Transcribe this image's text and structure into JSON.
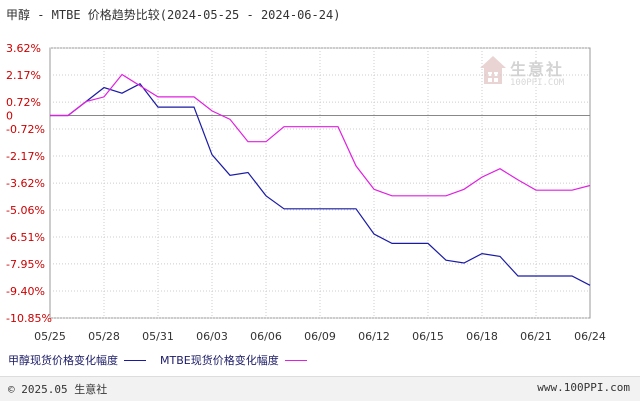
{
  "title": "甲醇 - MTBE 价格趋势比较(2024-05-25 - 2024-06-24)",
  "watermark": {
    "name": "生意社",
    "url": "100PPI.COM"
  },
  "footer": {
    "left": "© 2025.05 生意社",
    "right": "www.100PPI.com"
  },
  "colors": {
    "series1": "#1a1aa6",
    "series2": "#e020e0",
    "axis": "#999999",
    "zero_line": "#888888"
  },
  "chart_data": {
    "type": "line",
    "title": "甲醇 - MTBE 价格趋势比较(2024-05-25 - 2024-06-24)",
    "xlabel": "",
    "ylabel": "",
    "x": [
      "05/25",
      "05/26",
      "05/27",
      "05/28",
      "05/29",
      "05/30",
      "05/31",
      "06/01",
      "06/02",
      "06/03",
      "06/04",
      "06/05",
      "06/06",
      "06/07",
      "06/08",
      "06/09",
      "06/10",
      "06/11",
      "06/12",
      "06/13",
      "06/14",
      "06/15",
      "06/16",
      "06/17",
      "06/18",
      "06/19",
      "06/20",
      "06/21",
      "06/22",
      "06/23",
      "06/24"
    ],
    "x_ticks": [
      "05/25",
      "05/28",
      "05/31",
      "06/03",
      "06/06",
      "06/09",
      "06/12",
      "06/15",
      "06/18",
      "06/21",
      "06/24"
    ],
    "y_ticks": [
      "3.62%",
      "2.17%",
      "0.72%",
      "0",
      "-0.72%",
      "-2.17%",
      "-3.62%",
      "-5.06%",
      "-6.51%",
      "-7.95%",
      "-9.40%",
      "-10.85%"
    ],
    "y_tick_values": [
      3.62,
      2.17,
      0.72,
      0,
      -0.72,
      -2.17,
      -3.62,
      -5.06,
      -6.51,
      -7.95,
      -9.4,
      -10.85
    ],
    "ylim": [
      -10.85,
      3.62
    ],
    "grid": true,
    "series": [
      {
        "name": "甲醇现货价格变化幅度",
        "color": "#1a1aa6",
        "values": [
          0,
          0,
          0.75,
          1.5,
          1.2,
          1.7,
          0.45,
          0.45,
          0.45,
          -2.1,
          -3.2,
          -3.05,
          -4.3,
          -5.0,
          -5.0,
          -5.0,
          -5.0,
          -5.0,
          -6.35,
          -6.85,
          -6.85,
          -6.85,
          -7.75,
          -7.9,
          -7.4,
          -7.55,
          -8.6,
          -8.6,
          -8.6,
          -8.6,
          -9.1
        ]
      },
      {
        "name": "MTBE现货价格变化幅度",
        "color": "#e020e0",
        "values": [
          0,
          0,
          0.75,
          1.0,
          2.2,
          1.6,
          1.0,
          1.0,
          1.0,
          0.25,
          -0.2,
          -1.4,
          -1.4,
          -0.6,
          -0.6,
          -0.6,
          -0.6,
          -2.7,
          -3.95,
          -4.3,
          -4.3,
          -4.3,
          -4.3,
          -3.95,
          -3.3,
          -2.85,
          -3.45,
          -4.0,
          -4.0,
          -4.0,
          -3.75
        ]
      }
    ]
  }
}
